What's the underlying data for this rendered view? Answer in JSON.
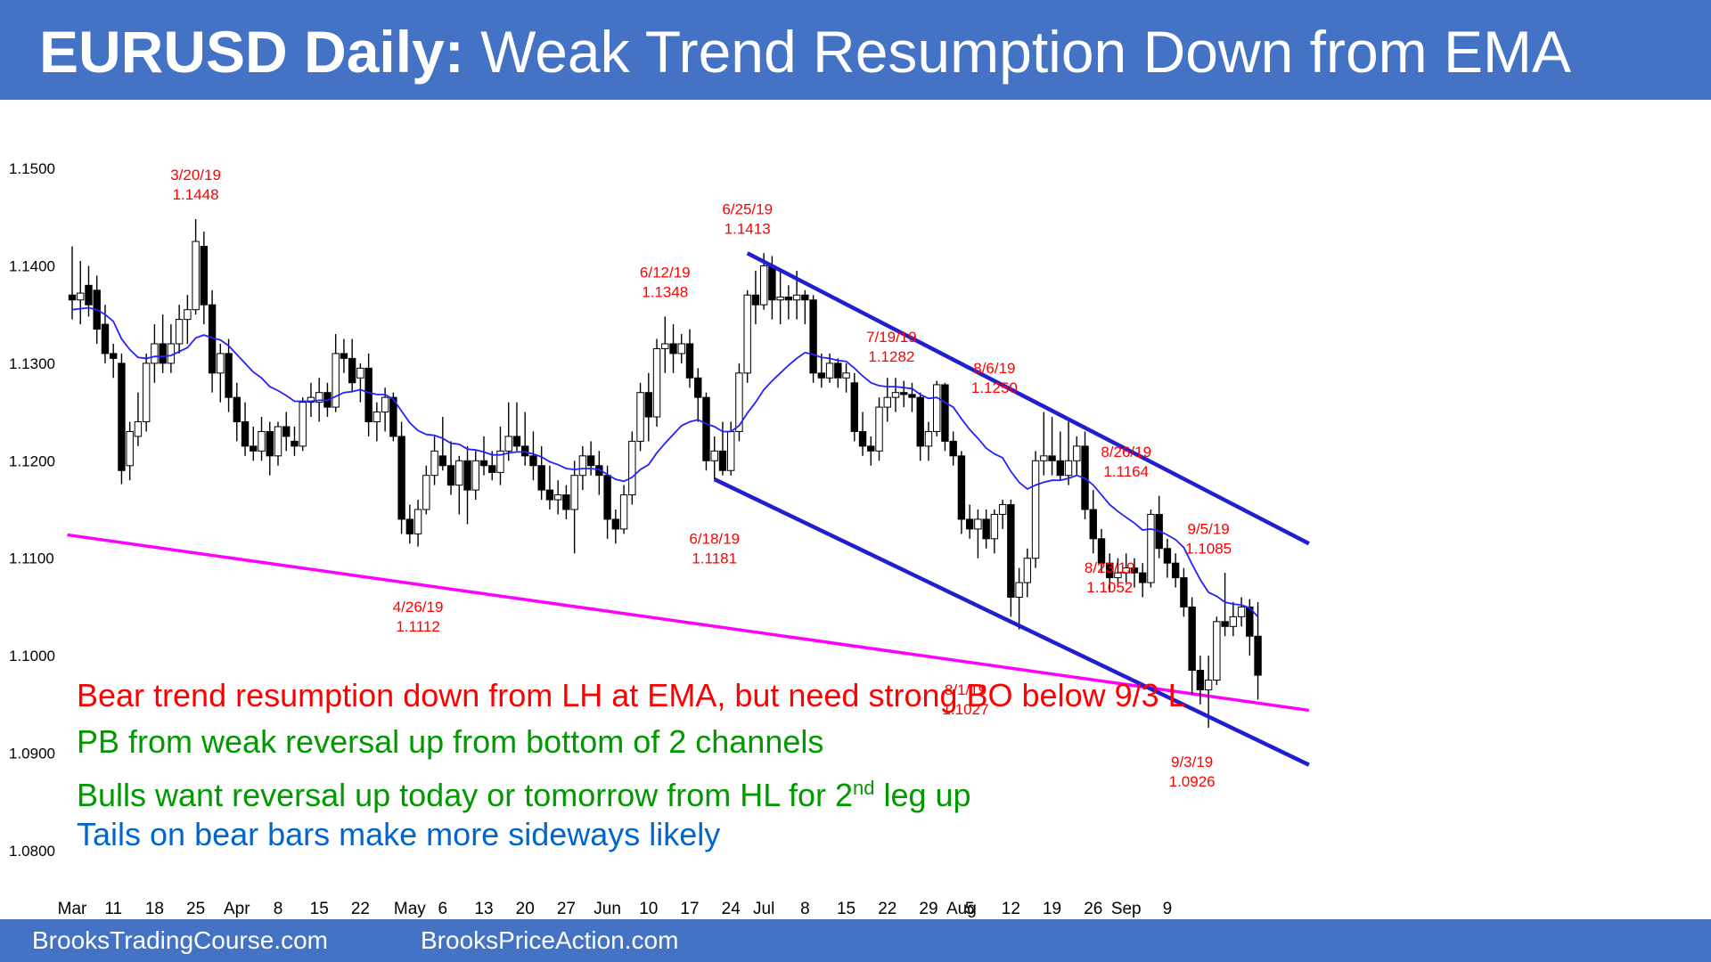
{
  "header": {
    "title_bold": "EURUSD Daily:",
    "title_rest": " Weak Trend Resumption Down from EMA"
  },
  "footer": {
    "left_link": "BrooksTradingCourse.com",
    "right_link": "BrooksPriceAction.com"
  },
  "colors": {
    "banner": "#4472C4",
    "bull_body": "#ffffff",
    "bear_body": "#000000",
    "ema": "#2222ff",
    "channel": "#1f1fd0",
    "support_line": "#ff00ff",
    "label_red": "#ff0000",
    "note_green": "#009900",
    "note_blue": "#0066cc"
  },
  "notes": [
    {
      "text": "Bear trend resumption down from LH at EMA, but need strong BO below 9/3 L",
      "color": "#ff0000"
    },
    {
      "text": "PB from weak reversal up from bottom of 2 channels",
      "color": "#009900"
    },
    {
      "text_before": "Bulls want reversal up today or tomorrow from HL for 2",
      "sup": "nd",
      "text_after": " leg up",
      "color": "#009900"
    },
    {
      "text": "Tails on bear bars make more sideways likely",
      "color": "#0066cc"
    }
  ],
  "chart_data": {
    "type": "candlestick",
    "title": "EURUSD Daily",
    "ylim": [
      1.08,
      1.15
    ],
    "yticks": [
      "1.1500",
      "1.1400",
      "1.1300",
      "1.1200",
      "1.1100",
      "1.1000",
      "1.0900",
      "1.0800"
    ],
    "xticks": [
      "Mar",
      "11",
      "18",
      "25",
      "Apr",
      "8",
      "15",
      "22",
      "May",
      "6",
      "13",
      "20",
      "27",
      "Jun",
      "10",
      "17",
      "24",
      "Jul",
      "8",
      "15",
      "22",
      "29",
      "Aug",
      "5",
      "12",
      "19",
      "26",
      "Sep",
      "9"
    ],
    "xtick_bar_index": [
      0,
      5,
      10,
      15,
      20,
      25,
      30,
      35,
      41,
      45,
      50,
      55,
      60,
      65,
      70,
      75,
      80,
      84,
      89,
      94,
      99,
      104,
      108,
      109,
      114,
      119,
      124,
      128,
      133
    ],
    "ohlc": [
      [
        1.137,
        1.142,
        1.1345,
        1.1365
      ],
      [
        1.1365,
        1.1405,
        1.134,
        1.1372
      ],
      [
        1.138,
        1.14,
        1.1348,
        1.136
      ],
      [
        1.1375,
        1.139,
        1.132,
        1.1335
      ],
      [
        1.134,
        1.136,
        1.13,
        1.131
      ],
      [
        1.131,
        1.132,
        1.1285,
        1.1305
      ],
      [
        1.13,
        1.131,
        1.1176,
        1.119
      ],
      [
        1.1195,
        1.124,
        1.118,
        1.123
      ],
      [
        1.1225,
        1.127,
        1.1215,
        1.124
      ],
      [
        1.124,
        1.131,
        1.123,
        1.13
      ],
      [
        1.13,
        1.134,
        1.128,
        1.132
      ],
      [
        1.132,
        1.135,
        1.129,
        1.13
      ],
      [
        1.13,
        1.134,
        1.129,
        1.132
      ],
      [
        1.132,
        1.136,
        1.131,
        1.1345
      ],
      [
        1.1345,
        1.137,
        1.132,
        1.1355
      ],
      [
        1.1355,
        1.1448,
        1.135,
        1.1425
      ],
      [
        1.142,
        1.1435,
        1.134,
        1.136
      ],
      [
        1.136,
        1.1375,
        1.127,
        1.129
      ],
      [
        1.129,
        1.132,
        1.126,
        1.131
      ],
      [
        1.131,
        1.1325,
        1.125,
        1.1265
      ],
      [
        1.1265,
        1.128,
        1.122,
        1.124
      ],
      [
        1.124,
        1.126,
        1.1205,
        1.1215
      ],
      [
        1.1215,
        1.1235,
        1.12,
        1.121
      ],
      [
        1.121,
        1.1245,
        1.12,
        1.123
      ],
      [
        1.123,
        1.124,
        1.1185,
        1.1205
      ],
      [
        1.1205,
        1.124,
        1.1195,
        1.1235
      ],
      [
        1.1235,
        1.125,
        1.121,
        1.1225
      ],
      [
        1.122,
        1.1235,
        1.1205,
        1.1215
      ],
      [
        1.1215,
        1.1265,
        1.121,
        1.126
      ],
      [
        1.126,
        1.128,
        1.1245,
        1.1265
      ],
      [
        1.126,
        1.1285,
        1.124,
        1.127
      ],
      [
        1.127,
        1.128,
        1.1245,
        1.1255
      ],
      [
        1.1255,
        1.133,
        1.125,
        1.131
      ],
      [
        1.131,
        1.1325,
        1.129,
        1.1305
      ],
      [
        1.1305,
        1.1325,
        1.127,
        1.128
      ],
      [
        1.1285,
        1.13,
        1.126,
        1.1295
      ],
      [
        1.1295,
        1.131,
        1.1225,
        1.124
      ],
      [
        1.124,
        1.126,
        1.122,
        1.125
      ],
      [
        1.125,
        1.1275,
        1.123,
        1.1265
      ],
      [
        1.1265,
        1.127,
        1.122,
        1.1225
      ],
      [
        1.1225,
        1.124,
        1.1125,
        1.114
      ],
      [
        1.114,
        1.1155,
        1.1115,
        1.1125
      ],
      [
        1.1125,
        1.116,
        1.1112,
        1.115
      ],
      [
        1.115,
        1.1195,
        1.1145,
        1.1185
      ],
      [
        1.1185,
        1.1225,
        1.1175,
        1.121
      ],
      [
        1.1205,
        1.1245,
        1.119,
        1.1195
      ],
      [
        1.1195,
        1.122,
        1.1165,
        1.1175
      ],
      [
        1.1175,
        1.1205,
        1.1145,
        1.12
      ],
      [
        1.12,
        1.1215,
        1.1135,
        1.117
      ],
      [
        1.117,
        1.121,
        1.116,
        1.12
      ],
      [
        1.12,
        1.1225,
        1.1185,
        1.1195
      ],
      [
        1.1195,
        1.121,
        1.118,
        1.1188
      ],
      [
        1.1188,
        1.1235,
        1.1175,
        1.121
      ],
      [
        1.121,
        1.126,
        1.12,
        1.1225
      ],
      [
        1.1225,
        1.126,
        1.121,
        1.1215
      ],
      [
        1.1215,
        1.125,
        1.1195,
        1.1205
      ],
      [
        1.1205,
        1.123,
        1.118,
        1.1195
      ],
      [
        1.1195,
        1.1215,
        1.116,
        1.117
      ],
      [
        1.117,
        1.1195,
        1.115,
        1.116
      ],
      [
        1.116,
        1.118,
        1.1145,
        1.1165
      ],
      [
        1.1165,
        1.1175,
        1.114,
        1.115
      ],
      [
        1.115,
        1.12,
        1.1105,
        1.1185
      ],
      [
        1.1185,
        1.1215,
        1.117,
        1.1205
      ],
      [
        1.1205,
        1.122,
        1.1185,
        1.1195
      ],
      [
        1.1195,
        1.121,
        1.1165,
        1.1185
      ],
      [
        1.1185,
        1.1195,
        1.112,
        1.114
      ],
      [
        1.114,
        1.115,
        1.1115,
        1.113
      ],
      [
        1.113,
        1.1175,
        1.1125,
        1.1165
      ],
      [
        1.1165,
        1.123,
        1.1155,
        1.122
      ],
      [
        1.122,
        1.128,
        1.121,
        1.127
      ],
      [
        1.127,
        1.129,
        1.122,
        1.1245
      ],
      [
        1.1245,
        1.1325,
        1.1235,
        1.1315
      ],
      [
        1.1315,
        1.1348,
        1.129,
        1.132
      ],
      [
        1.132,
        1.134,
        1.129,
        1.131
      ],
      [
        1.131,
        1.133,
        1.13,
        1.132
      ],
      [
        1.132,
        1.1335,
        1.1275,
        1.1285
      ],
      [
        1.1285,
        1.1295,
        1.124,
        1.1265
      ],
      [
        1.1265,
        1.127,
        1.119,
        1.12
      ],
      [
        1.12,
        1.1225,
        1.1181,
        1.121
      ],
      [
        1.121,
        1.124,
        1.1185,
        1.119
      ],
      [
        1.119,
        1.124,
        1.1185,
        1.123
      ],
      [
        1.123,
        1.13,
        1.122,
        1.129
      ],
      [
        1.129,
        1.1375,
        1.128,
        1.137
      ],
      [
        1.137,
        1.1395,
        1.134,
        1.136
      ],
      [
        1.136,
        1.1413,
        1.1355,
        1.14
      ],
      [
        1.14,
        1.141,
        1.1345,
        1.1365
      ],
      [
        1.1365,
        1.1395,
        1.134,
        1.1368
      ],
      [
        1.1368,
        1.138,
        1.1345,
        1.1365
      ],
      [
        1.1365,
        1.1395,
        1.1345,
        1.137
      ],
      [
        1.137,
        1.1375,
        1.134,
        1.1365
      ],
      [
        1.1365,
        1.137,
        1.128,
        1.129
      ],
      [
        1.129,
        1.131,
        1.1275,
        1.1285
      ],
      [
        1.1285,
        1.131,
        1.128,
        1.13
      ],
      [
        1.13,
        1.1305,
        1.1275,
        1.1285
      ],
      [
        1.1285,
        1.13,
        1.127,
        1.129
      ],
      [
        1.128,
        1.129,
        1.122,
        1.123
      ],
      [
        1.123,
        1.125,
        1.1205,
        1.1215
      ],
      [
        1.1215,
        1.1225,
        1.1195,
        1.121
      ],
      [
        1.121,
        1.1265,
        1.12,
        1.1255
      ],
      [
        1.1255,
        1.1285,
        1.124,
        1.1265
      ],
      [
        1.1265,
        1.1285,
        1.125,
        1.127
      ],
      [
        1.127,
        1.1282,
        1.1255,
        1.1268
      ],
      [
        1.1268,
        1.128,
        1.125,
        1.1265
      ],
      [
        1.1265,
        1.127,
        1.12,
        1.1215
      ],
      [
        1.1215,
        1.124,
        1.12,
        1.123
      ],
      [
        1.123,
        1.1282,
        1.1225,
        1.1278
      ],
      [
        1.1278,
        1.128,
        1.121,
        1.122
      ],
      [
        1.122,
        1.123,
        1.1195,
        1.1205
      ],
      [
        1.1205,
        1.121,
        1.1125,
        1.114
      ],
      [
        1.114,
        1.1155,
        1.112,
        1.113
      ],
      [
        1.113,
        1.115,
        1.11,
        1.114
      ],
      [
        1.114,
        1.115,
        1.111,
        1.112
      ],
      [
        1.112,
        1.115,
        1.1105,
        1.1145
      ],
      [
        1.1145,
        1.116,
        1.113,
        1.1155
      ],
      [
        1.1155,
        1.116,
        1.104,
        1.106
      ],
      [
        1.106,
        1.109,
        1.1027,
        1.1075
      ],
      [
        1.1075,
        1.111,
        1.106,
        1.11
      ],
      [
        1.11,
        1.121,
        1.109,
        1.12
      ],
      [
        1.12,
        1.125,
        1.1185,
        1.1205
      ],
      [
        1.1205,
        1.1245,
        1.1185,
        1.12
      ],
      [
        1.12,
        1.123,
        1.118,
        1.1185
      ],
      [
        1.1185,
        1.124,
        1.1175,
        1.12
      ],
      [
        1.12,
        1.1225,
        1.1185,
        1.1215
      ],
      [
        1.1215,
        1.123,
        1.114,
        1.115
      ],
      [
        1.115,
        1.117,
        1.1105,
        1.112
      ],
      [
        1.112,
        1.113,
        1.1085,
        1.1095
      ],
      [
        1.1095,
        1.1105,
        1.1065,
        1.108
      ],
      [
        1.108,
        1.11,
        1.107,
        1.1085
      ],
      [
        1.1085,
        1.1105,
        1.1075,
        1.109
      ],
      [
        1.109,
        1.11,
        1.107,
        1.1085
      ],
      [
        1.1085,
        1.1095,
        1.106,
        1.1075
      ],
      [
        1.1075,
        1.115,
        1.107,
        1.1145
      ],
      [
        1.1145,
        1.1164,
        1.11,
        1.111
      ],
      [
        1.111,
        1.112,
        1.108,
        1.1095
      ],
      [
        1.1095,
        1.1105,
        1.107,
        1.108
      ],
      [
        1.108,
        1.109,
        1.104,
        1.105
      ],
      [
        1.105,
        1.106,
        1.096,
        1.0985
      ],
      [
        1.0985,
        1.1,
        1.095,
        1.0965
      ],
      [
        1.0965,
        1.1,
        1.0926,
        1.0975
      ],
      [
        1.0975,
        1.104,
        1.097,
        1.1035
      ],
      [
        1.1035,
        1.1085,
        1.102,
        1.103
      ],
      [
        1.103,
        1.1055,
        1.102,
        1.104
      ],
      [
        1.104,
        1.106,
        1.103,
        1.105
      ],
      [
        1.105,
        1.1058,
        1.1,
        1.102
      ],
      [
        1.102,
        1.1055,
        1.0955,
        1.098
      ]
    ],
    "ema_values": [
      1.1355,
      1.1356,
      1.1357,
      1.1355,
      1.135,
      1.1343,
      1.1325,
      1.1314,
      1.1306,
      1.1305,
      1.1307,
      1.1307,
      1.1308,
      1.1312,
      1.1316,
      1.1326,
      1.1329,
      1.1326,
      1.1324,
      1.1318,
      1.1309,
      1.13,
      1.1291,
      1.1285,
      1.1276,
      1.1272,
      1.1267,
      1.1261,
      1.1261,
      1.1261,
      1.1262,
      1.1262,
      1.1266,
      1.127,
      1.1271,
      1.1273,
      1.127,
      1.1268,
      1.1268,
      1.1263,
      1.1251,
      1.1239,
      1.1231,
      1.1227,
      1.1226,
      1.1223,
      1.1218,
      1.1217,
      1.1212,
      1.1211,
      1.1209,
      1.1206,
      1.1206,
      1.1208,
      1.1209,
      1.1209,
      1.1207,
      1.1204,
      1.1199,
      1.1196,
      1.1192,
      1.1191,
      1.1192,
      1.1192,
      1.1191,
      1.1186,
      1.1181,
      1.1179,
      1.1183,
      1.1191,
      1.1196,
      1.1208,
      1.1218,
      1.1227,
      1.1236,
      1.124,
      1.1242,
      1.1238,
      1.1235,
      1.123,
      1.123,
      1.1236,
      1.1249,
      1.126,
      1.1273,
      1.1282,
      1.129,
      1.1298,
      1.1305,
      1.1311,
      1.1309,
      1.1306,
      1.1305,
      1.1303,
      1.1302,
      1.1295,
      1.1287,
      1.128,
      1.1277,
      1.1276,
      1.1276,
      1.1275,
      1.1274,
      1.1268,
      1.1264,
      1.1265,
      1.126,
      1.1255,
      1.1243,
      1.1232,
      1.1223,
      1.1213,
      1.1207,
      1.1203,
      1.1189,
      1.1178,
      1.1171,
      1.1175,
      1.1178,
      1.118,
      1.118,
      1.1182,
      1.1185,
      1.1182,
      1.1175,
      1.1165,
      1.1155,
      1.1148,
      1.1142,
      1.1136,
      1.1129,
      1.113,
      1.1128,
      1.1124,
      1.1119,
      1.1111,
      1.1094,
      1.1078,
      1.1065,
      1.1061,
      1.1055,
      1.1053,
      1.1052,
      1.1049,
      1.104
    ],
    "trendlines": [
      {
        "name": "channel-top",
        "from": {
          "bar": 82,
          "price": 1.1413
        },
        "to": {
          "bar": 150.2,
          "price": 1.1115
        }
      },
      {
        "name": "channel-bottom",
        "from": {
          "bar": 78,
          "price": 1.1181
        },
        "to": {
          "bar": 150.2,
          "price": 1.0888
        }
      },
      {
        "name": "support-line",
        "from": {
          "bar": -0.6,
          "price": 1.1124
        },
        "to": {
          "bar": 150.2,
          "price": 1.0944
        }
      }
    ],
    "annotations": [
      {
        "date": "3/20/19",
        "price": "1.1448",
        "bar": 15,
        "price_pos": 1.1488
      },
      {
        "date": "4/26/19",
        "price": "1.1112",
        "bar": 42,
        "price_pos": 1.1045
      },
      {
        "date": "6/12/19",
        "price": "1.1348",
        "bar": 72,
        "price_pos": 1.1388
      },
      {
        "date": "6/18/19",
        "price": "1.1181",
        "bar": 78,
        "price_pos": 1.1115
      },
      {
        "date": "6/25/19",
        "price": "1.1413",
        "bar": 82,
        "price_pos": 1.1453
      },
      {
        "date": "7/19/19",
        "price": "1.1282",
        "bar": 99.5,
        "price_pos": 1.1322
      },
      {
        "date": "8/1/19",
        "price": "1.1027",
        "bar": 108.5,
        "price_pos": 1.096
      },
      {
        "date": "8/6/19",
        "price": "1.1250",
        "bar": 112,
        "price_pos": 1.129
      },
      {
        "date": "8/23/19",
        "price": "1.1052",
        "bar": 126,
        "price_pos": 1.1085
      },
      {
        "date": "8/26/19",
        "price": "1.1164",
        "bar": 128,
        "price_pos": 1.1204
      },
      {
        "date": "9/3/19",
        "price": "1.0926",
        "bar": 136,
        "price_pos": 1.0886
      },
      {
        "date": "9/5/19",
        "price": "1.1085",
        "bar": 138,
        "price_pos": 1.1125
      }
    ]
  }
}
